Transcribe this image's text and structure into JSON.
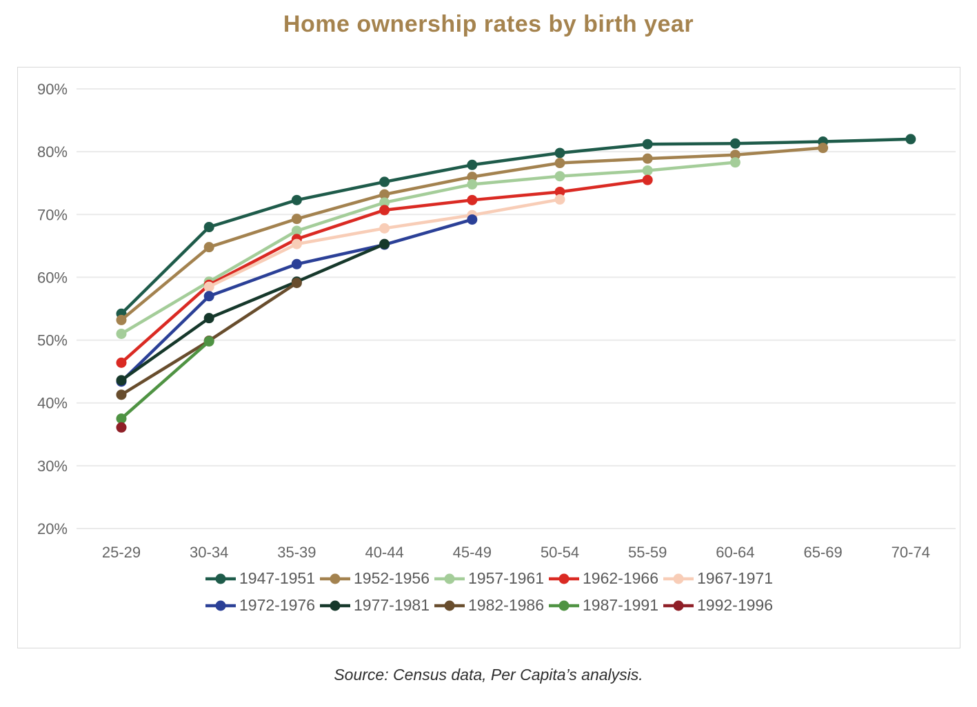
{
  "page": {
    "title": "Home ownership rates by birth year",
    "source_note": "Source: Census data, Per Capita’s analysis."
  },
  "colors": {
    "title_text": "#a5834e",
    "axis_text": "#646464",
    "legend_text": "#595959",
    "gridline": "#eaeaea",
    "card_border": "#d8d8d8",
    "background": "#ffffff"
  },
  "chart_data": {
    "type": "line",
    "title": "Home ownership rates by birth year",
    "xlabel": "",
    "ylabel": "",
    "legend_position": "bottom",
    "grid": "horizontal",
    "y_axis": {
      "min": 20,
      "max": 90,
      "step": 10,
      "tick_labels": [
        "90%",
        "80%",
        "70%",
        "60%",
        "50%",
        "40%",
        "30%",
        "20%"
      ]
    },
    "categories": [
      "25-29",
      "30-34",
      "35-39",
      "40-44",
      "45-49",
      "50-54",
      "55-59",
      "60-64",
      "65-69",
      "70-74"
    ],
    "series": [
      {
        "name": "1947-1951",
        "color": "#1e5b4a",
        "values": [
          54.2,
          68.0,
          72.3,
          75.2,
          77.9,
          79.8,
          81.2,
          81.3,
          81.6,
          82.0
        ]
      },
      {
        "name": "1952-1956",
        "color": "#a3824f",
        "values": [
          53.2,
          64.8,
          69.3,
          73.2,
          76.0,
          78.2,
          78.9,
          79.5,
          80.6,
          null
        ]
      },
      {
        "name": "1957-1961",
        "color": "#a4cd99",
        "values": [
          51.0,
          59.3,
          67.4,
          71.9,
          74.8,
          76.1,
          77.0,
          78.3,
          null,
          null
        ]
      },
      {
        "name": "1962-1966",
        "color": "#da2a23",
        "values": [
          46.4,
          58.8,
          66.1,
          70.7,
          72.3,
          73.6,
          75.5,
          null,
          null,
          null
        ]
      },
      {
        "name": "1967-1971",
        "color": "#f8cdb7",
        "values": [
          null,
          58.5,
          65.3,
          67.8,
          69.9,
          72.4,
          null,
          null,
          null,
          null
        ]
      },
      {
        "name": "1972-1976",
        "color": "#2b4097",
        "values": [
          43.4,
          57.0,
          62.1,
          65.2,
          69.2,
          null,
          null,
          null,
          null,
          null
        ]
      },
      {
        "name": "1977-1981",
        "color": "#16382b",
        "values": [
          43.6,
          53.5,
          59.3,
          65.3,
          null,
          null,
          null,
          null,
          null,
          null
        ]
      },
      {
        "name": "1982-1986",
        "color": "#684d2d",
        "values": [
          41.3,
          49.9,
          59.1,
          null,
          null,
          null,
          null,
          null,
          null,
          null
        ]
      },
      {
        "name": "1987-1991",
        "color": "#4f9343",
        "values": [
          37.5,
          49.8,
          null,
          null,
          null,
          null,
          null,
          null,
          null,
          null
        ]
      },
      {
        "name": "1992-1996",
        "color": "#8f1f27",
        "values": [
          36.1,
          null,
          null,
          null,
          null,
          null,
          null,
          null,
          null,
          null
        ]
      }
    ]
  }
}
